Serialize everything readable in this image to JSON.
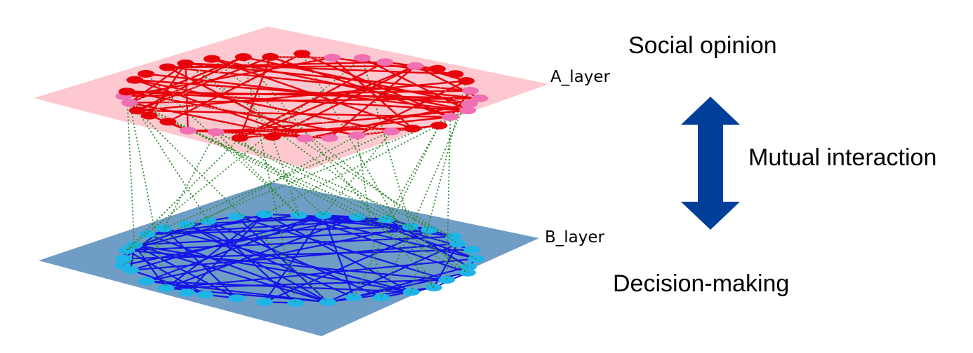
{
  "labels": {
    "top_layer": "A_layer",
    "bottom_layer": "B_layer",
    "top_caption": "Social opinion",
    "middle_caption": "Mutual interaction",
    "bottom_caption": "Decision-making"
  },
  "layers": {
    "top": {
      "plane_color": "#fdc8cf",
      "edge_color": "#e8000a",
      "node_color": "#e8000a",
      "alt_node_color": "#f06eb2",
      "node_count": 36,
      "alt_node_indices": [
        1,
        2,
        3,
        4,
        8,
        9,
        10,
        11,
        12,
        15,
        16,
        17,
        18,
        21,
        22,
        26,
        27
      ]
    },
    "bottom": {
      "plane_color": "#6f9dc5",
      "edge_color": "#1515e6",
      "node_color": "#1eb4e8",
      "node_count": 36
    },
    "interlayer_edge_color": "#2f8a2f",
    "arrow_color": "#003f99"
  }
}
